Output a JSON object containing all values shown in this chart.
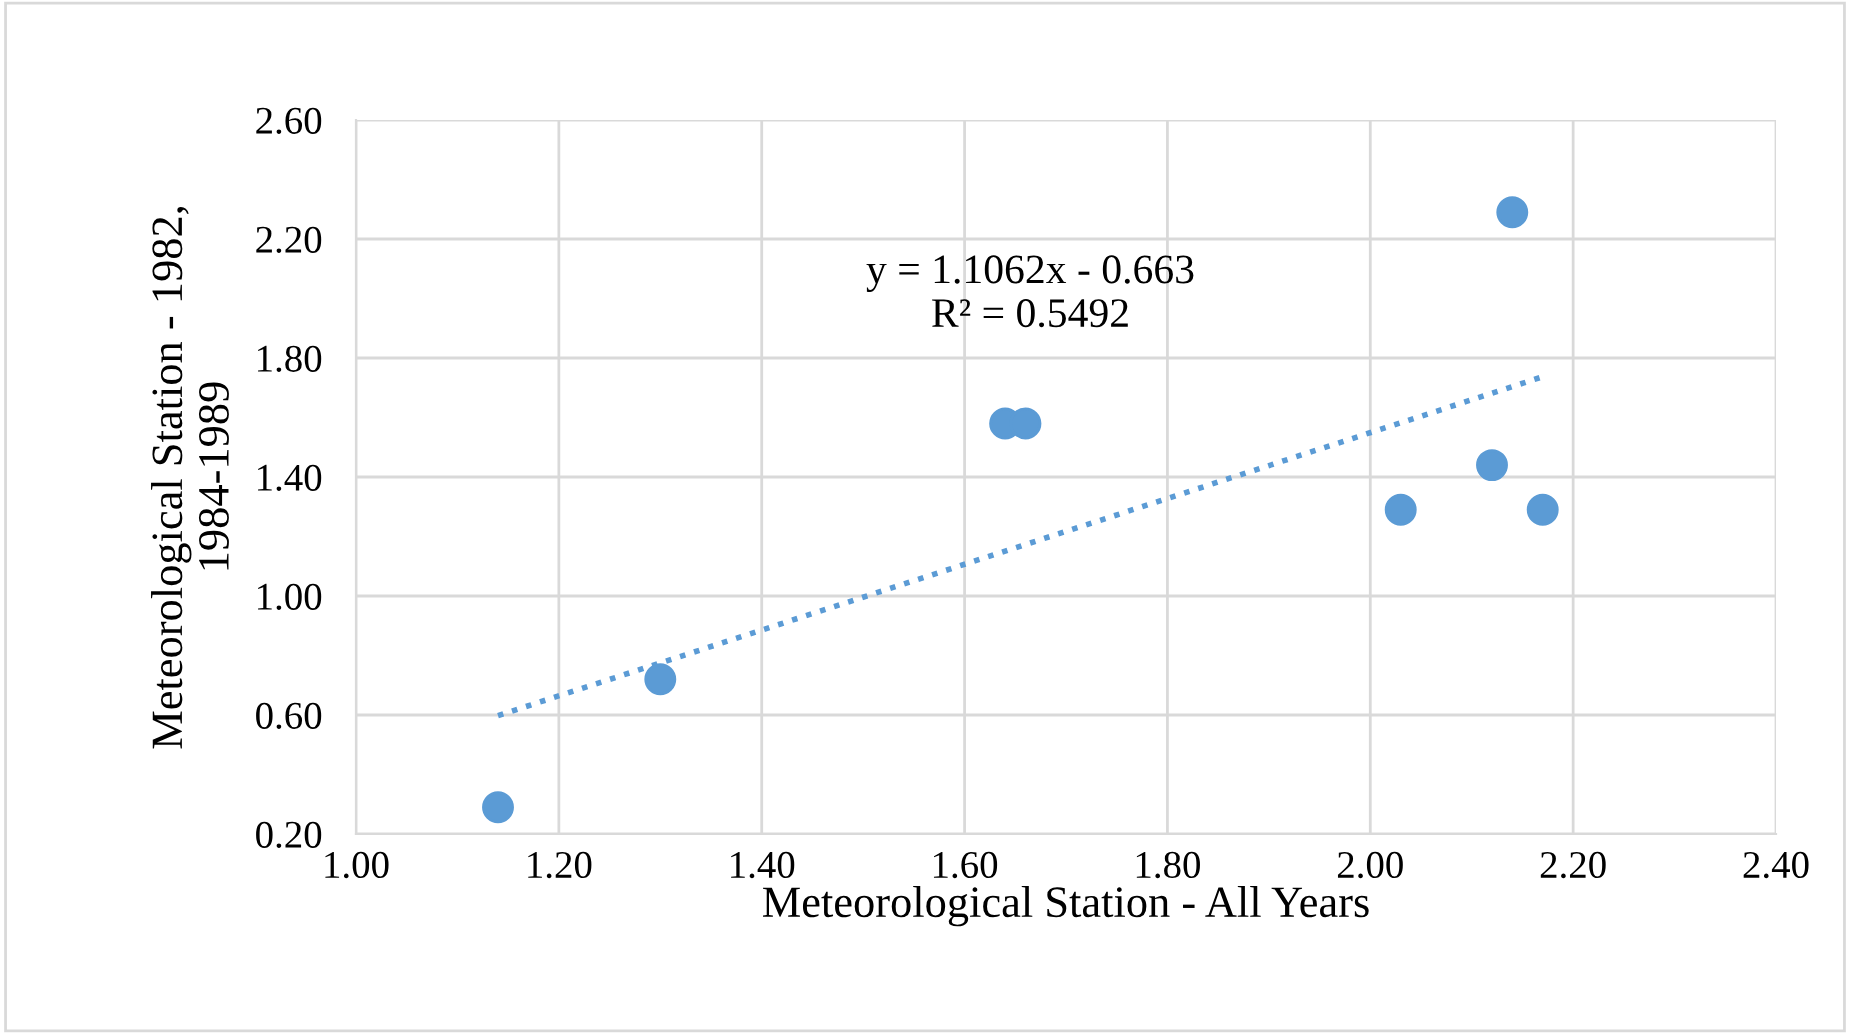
{
  "chart_data": {
    "type": "scatter",
    "xlabel": "Meteorological Station - All Years",
    "ylabel": "Meteorological Station - 1982,\n1984-1989",
    "series": [
      {
        "color": "#5b9bd5",
        "marker": "circle",
        "x": [
          1.14,
          1.3,
          1.64,
          1.66,
          2.03,
          2.12,
          2.14,
          2.17
        ],
        "values": [
          0.29,
          0.72,
          1.58,
          1.58,
          1.29,
          1.44,
          2.29,
          1.29
        ]
      },
      {
        "type": "line",
        "color": "#5b9bd5",
        "line_style": "dotted",
        "marker": "none",
        "x": [
          1.14,
          2.17
        ],
        "values": [
          0.598,
          1.737
        ]
      }
    ],
    "annotations": [
      "y = 1.1062x - 0.663\nR² = 0.5492"
    ],
    "xlim": [
      1.0,
      2.4
    ],
    "xticks": [
      {
        "value": 1.0,
        "label": "1.00"
      },
      {
        "value": 1.2,
        "label": "1.20"
      },
      {
        "value": 1.4,
        "label": "1.40"
      },
      {
        "value": 1.6,
        "label": "1.60"
      },
      {
        "value": 1.8,
        "label": "1.80"
      },
      {
        "value": 2.0,
        "label": "2.00"
      },
      {
        "value": 2.2,
        "label": "2.20"
      },
      {
        "value": 2.4,
        "label": "2.40"
      }
    ],
    "ylim": [
      0.2,
      2.6
    ],
    "yticks": [
      {
        "value": 0.2,
        "label": "0.20"
      },
      {
        "value": 0.6,
        "label": "0.60"
      },
      {
        "value": 1.0,
        "label": "1.00"
      },
      {
        "value": 1.4,
        "label": "1.40"
      },
      {
        "value": 1.8,
        "label": "1.80"
      },
      {
        "value": 2.2,
        "label": "2.20"
      },
      {
        "value": 2.6,
        "label": "2.60"
      }
    ],
    "grid": true
  }
}
